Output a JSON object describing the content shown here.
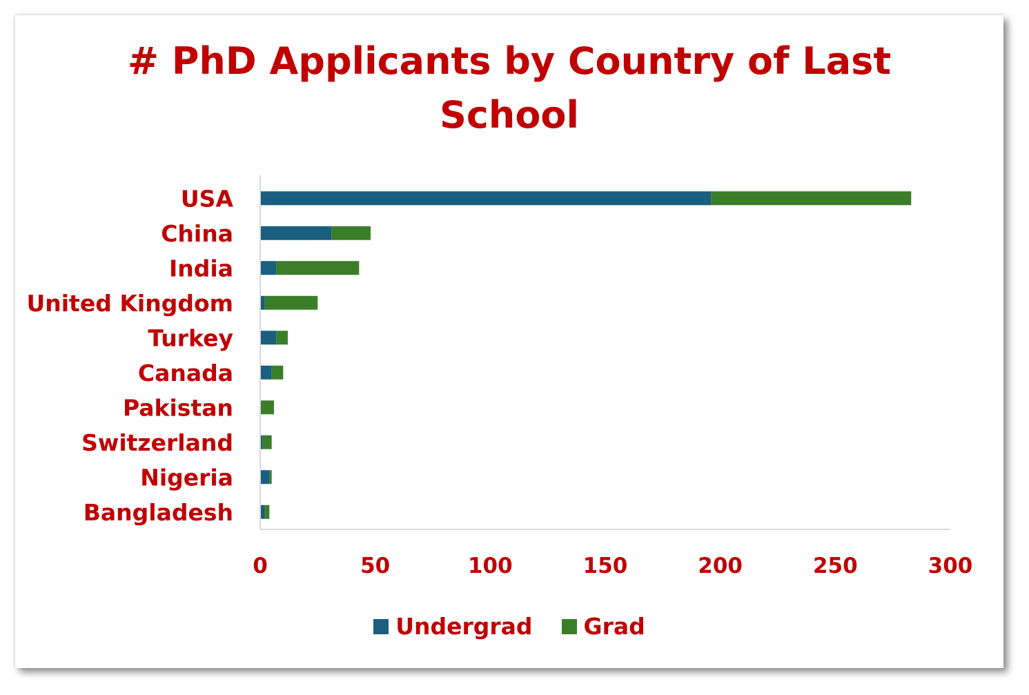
{
  "colors": {
    "text": "#c00000",
    "undergrad": "#1a5e80",
    "grad": "#3b7e2a",
    "axis": "#d9d9d9"
  },
  "chart_data": {
    "type": "bar",
    "orientation": "horizontal",
    "stacked": true,
    "title": "# PhD Applicants by Country of Last School",
    "title_lines": [
      "# PhD Applicants by Country of Last",
      "School"
    ],
    "categories": [
      "USA",
      "China",
      "India",
      "United Kingdom",
      "Turkey",
      "Canada",
      "Pakistan",
      "Switzerland",
      "Nigeria",
      "Bangladesh"
    ],
    "series": [
      {
        "name": "Undergrad",
        "values": [
          196,
          31,
          7,
          2,
          7,
          5,
          0,
          1,
          4,
          2
        ]
      },
      {
        "name": "Grad",
        "values": [
          87,
          17,
          36,
          23,
          5,
          5,
          6,
          4,
          1,
          2
        ]
      }
    ],
    "xlim": [
      0,
      300
    ],
    "xticks": [
      0,
      50,
      100,
      150,
      200,
      250,
      300
    ],
    "xlabel": "",
    "ylabel": "",
    "grid": false,
    "legend_position": "bottom"
  }
}
